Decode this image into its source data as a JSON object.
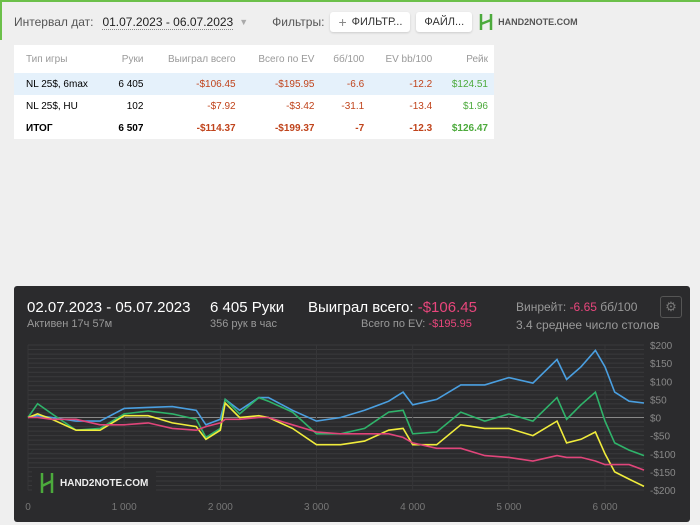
{
  "toolbar": {
    "interval_label": "Интервал дат:",
    "interval_value": "01.07.2023 - 06.07.2023",
    "filters_label": "Фильтры:",
    "filter_btn": "ФИЛЬТР...",
    "file_btn": "ФАЙЛ...",
    "logo": "HAND2NOTE.COM"
  },
  "table": {
    "headers": [
      "Тип игры",
      "Руки",
      "Выиграл всего",
      "Всего по EV",
      "бб/100",
      "EV bb/100",
      "Рейк"
    ],
    "rows": [
      [
        "NL 25$, 6max",
        "6 405",
        "-$106.45",
        "-$195.95",
        "-6.6",
        "-12.2",
        "$124.51"
      ],
      [
        "NL 25$, HU",
        "102",
        "-$7.92",
        "-$3.42",
        "-31.1",
        "-13.4",
        "$1.96"
      ],
      [
        "ИТОГ",
        "6 507",
        "-$114.37",
        "-$199.37",
        "-7",
        "-12.3",
        "$126.47"
      ]
    ]
  },
  "panel": {
    "dates": "02.07.2023 - 05.07.2023",
    "active": "Активен 17ч 57м",
    "hands": "6 405 Руки",
    "hands_per_hour": "356 рук в час",
    "won_label": "Выиграл всего:",
    "won_value": "-$106.45",
    "ev_label": "Всего по EV:",
    "ev_value": "-$195.95",
    "winrate_label": "Винрейт:",
    "winrate_value": "-6.65",
    "winrate_unit": "бб/100",
    "tables": "3.4 среднее число столов",
    "logo": "HAND2NOTE.COM"
  },
  "chart_data": {
    "type": "line",
    "xlim": [
      0,
      6405
    ],
    "ylim": [
      -200,
      200
    ],
    "x_ticks": [
      0,
      1000,
      2000,
      3000,
      4000,
      5000,
      6000
    ],
    "x_tick_labels": [
      "0",
      "1 000",
      "2 000",
      "3 000",
      "4 000",
      "5 000",
      "6 000"
    ],
    "y_ticks": [
      200,
      150,
      100,
      50,
      0,
      -50,
      -100,
      -150,
      -200
    ],
    "y_tick_labels": [
      "$200",
      "$150",
      "$100",
      "$50",
      "$0",
      "-$50",
      "-$100",
      "-$150",
      "-$200"
    ],
    "x": [
      0,
      100,
      250,
      500,
      750,
      1000,
      1250,
      1500,
      1750,
      1850,
      2000,
      2050,
      2200,
      2400,
      2500,
      2750,
      3000,
      3250,
      3500,
      3750,
      3900,
      4000,
      4250,
      4500,
      4750,
      5000,
      5250,
      5500,
      5600,
      5750,
      5900,
      6000,
      6100,
      6250,
      6405
    ],
    "series": [
      {
        "name": "blue",
        "color": "#4a9fe0",
        "values": [
          0,
          5,
          0,
          -10,
          -10,
          25,
          28,
          30,
          20,
          -20,
          -5,
          50,
          20,
          55,
          55,
          20,
          -10,
          0,
          20,
          45,
          70,
          35,
          50,
          90,
          90,
          110,
          95,
          160,
          105,
          140,
          185,
          140,
          70,
          45,
          40
        ]
      },
      {
        "name": "green",
        "color": "#2fb36a",
        "values": [
          0,
          38,
          10,
          -35,
          -30,
          10,
          18,
          10,
          -5,
          -55,
          -30,
          50,
          10,
          55,
          45,
          15,
          -45,
          -45,
          -30,
          15,
          20,
          -45,
          -40,
          15,
          -10,
          10,
          -10,
          55,
          -5,
          35,
          70,
          -10,
          -70,
          -90,
          -105
        ]
      },
      {
        "name": "yellow",
        "color": "#f0ec3c",
        "values": [
          0,
          10,
          -5,
          -35,
          -35,
          5,
          5,
          -15,
          -25,
          -60,
          -35,
          40,
          0,
          5,
          0,
          -30,
          -75,
          -75,
          -65,
          -35,
          -30,
          -75,
          -75,
          -20,
          -30,
          -30,
          -50,
          -10,
          -70,
          -60,
          -40,
          -100,
          -150,
          -170,
          -190
        ]
      },
      {
        "name": "pink",
        "color": "#e0457a",
        "values": [
          0,
          0,
          -5,
          -5,
          -20,
          -20,
          -15,
          -30,
          -35,
          -25,
          -15,
          -5,
          -5,
          0,
          0,
          -20,
          -40,
          -45,
          -45,
          -45,
          -55,
          -70,
          -85,
          -85,
          -105,
          -110,
          -120,
          -105,
          -110,
          -110,
          -120,
          -130,
          -130,
          -130,
          -145
        ]
      }
    ]
  }
}
